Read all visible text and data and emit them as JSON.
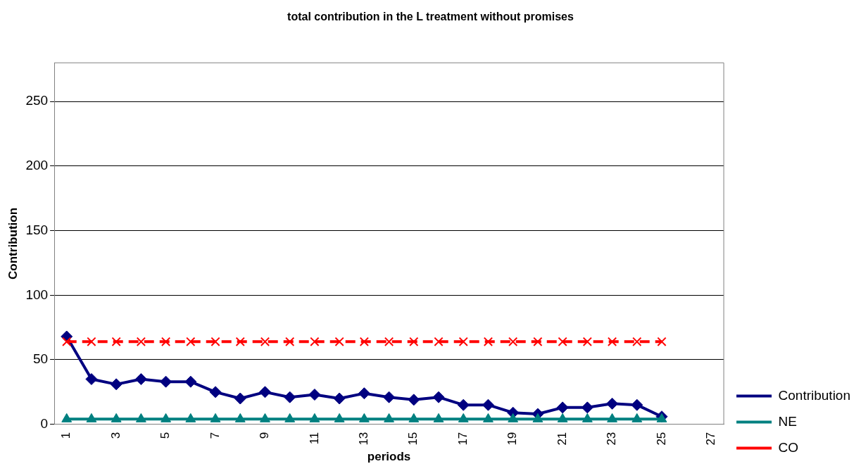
{
  "chart_data": {
    "type": "line",
    "title": "total contribution in the L treatment without promises",
    "xlabel": "periods",
    "ylabel": "Contribution",
    "categories": [
      "1",
      null,
      "3",
      null,
      "5",
      null,
      "7",
      null,
      "9",
      null,
      "11",
      null,
      "13",
      null,
      "15",
      null,
      "17",
      null,
      "19",
      null,
      "21",
      null,
      "23",
      null,
      "25",
      null,
      "27"
    ],
    "series": [
      {
        "name": "Contribution",
        "color": "#000080",
        "marker": "diamond",
        "line_style": "solid",
        "values": [
          68,
          35,
          31,
          35,
          33,
          33,
          25,
          20,
          25,
          21,
          23,
          20,
          24,
          21,
          19,
          21,
          15,
          15,
          9,
          8,
          13,
          13,
          16,
          15,
          6,
          null,
          null
        ]
      },
      {
        "name": "NE",
        "color": "#008080",
        "marker": "triangle",
        "line_style": "solid",
        "values": [
          4,
          4,
          4,
          4,
          4,
          4,
          4,
          4,
          4,
          4,
          4,
          4,
          4,
          4,
          4,
          4,
          4,
          4,
          4,
          4,
          4,
          4,
          4,
          4,
          4,
          null,
          null
        ]
      },
      {
        "name": "CO",
        "color": "#ff0000",
        "marker": "cross",
        "line_style": "dashed",
        "values": [
          64,
          64,
          64,
          64,
          64,
          64,
          64,
          64,
          64,
          64,
          64,
          64,
          64,
          64,
          64,
          64,
          64,
          64,
          64,
          64,
          64,
          64,
          64,
          64,
          64,
          null,
          null
        ]
      }
    ],
    "ylim": [
      0,
      280
    ],
    "yticks": [
      0,
      50,
      100,
      150,
      200,
      250
    ],
    "grid": "y",
    "legend": "right"
  }
}
